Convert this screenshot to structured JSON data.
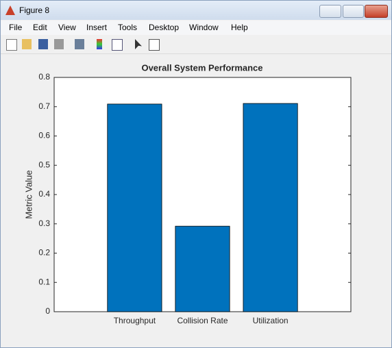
{
  "window": {
    "title": "Figure 8",
    "menu": [
      "File",
      "Edit",
      "View",
      "Insert",
      "Tools",
      "Desktop",
      "Window",
      "Help"
    ]
  },
  "chart_data": {
    "type": "bar",
    "title": "Overall System Performance",
    "y_label": "Metric Value",
    "categories": [
      "Throughput",
      "Collision Rate",
      "Utilization"
    ],
    "values": [
      0.709,
      0.292,
      0.711
    ],
    "color": "#0072bd",
    "ylim": [
      0,
      0.8
    ],
    "yticks": [
      0,
      0.1,
      0.2,
      0.3,
      0.4,
      0.5,
      0.6,
      0.7,
      0.8
    ]
  }
}
